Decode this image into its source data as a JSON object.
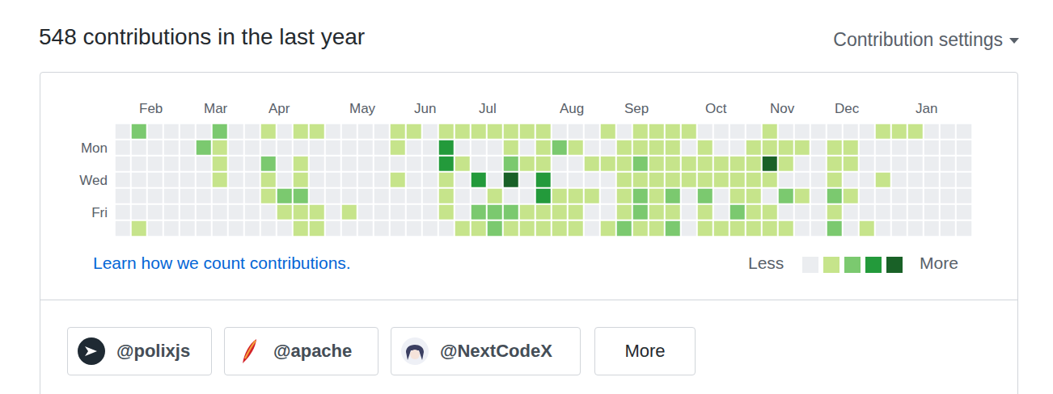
{
  "header": {
    "title": "548 contributions in the last year",
    "settings": "Contribution settings"
  },
  "chart_data": {
    "type": "heatmap",
    "categories": [
      null,
      "Feb",
      null,
      null,
      null,
      "Mar",
      null,
      null,
      null,
      "Apr",
      null,
      null,
      null,
      null,
      "May",
      null,
      null,
      null,
      "Jun",
      null,
      null,
      null,
      "Jul",
      null,
      null,
      null,
      null,
      "Aug",
      null,
      null,
      null,
      "Sep",
      null,
      null,
      null,
      null,
      "Oct",
      null,
      null,
      null,
      "Nov",
      null,
      null,
      null,
      "Dec",
      null,
      null,
      null,
      null,
      "Jan",
      null,
      null,
      null
    ],
    "rows": [
      null,
      "Mon",
      null,
      "Wed",
      null,
      "Fri",
      null
    ],
    "colors": [
      "#ebedf0",
      "#c6e48b",
      "#7bc96f",
      "#239a3b",
      "#196127"
    ],
    "cells": [
      [
        0,
        2,
        0,
        0,
        0,
        0,
        2,
        0,
        0,
        1,
        0,
        1,
        1,
        0,
        0,
        0,
        0,
        1,
        1,
        0,
        1,
        1,
        1,
        1,
        1,
        1,
        1,
        0,
        0,
        0,
        1,
        0,
        1,
        1,
        1,
        1,
        0,
        0,
        0,
        0,
        1,
        0,
        0,
        0,
        0,
        0,
        0,
        1,
        1,
        1,
        0,
        0,
        0
      ],
      [
        0,
        0,
        0,
        0,
        0,
        2,
        1,
        0,
        0,
        0,
        0,
        0,
        0,
        0,
        0,
        0,
        0,
        1,
        0,
        0,
        3,
        0,
        0,
        0,
        1,
        0,
        1,
        2,
        1,
        0,
        0,
        1,
        1,
        1,
        1,
        0,
        1,
        0,
        0,
        1,
        1,
        1,
        1,
        0,
        1,
        1,
        0,
        0,
        0,
        0,
        0,
        0,
        0
      ],
      [
        0,
        0,
        0,
        0,
        0,
        0,
        1,
        0,
        0,
        2,
        0,
        1,
        0,
        0,
        0,
        0,
        0,
        0,
        0,
        0,
        3,
        1,
        0,
        0,
        2,
        1,
        1,
        0,
        0,
        1,
        1,
        1,
        2,
        1,
        1,
        1,
        1,
        1,
        1,
        1,
        4,
        1,
        0,
        0,
        1,
        1,
        0,
        0,
        0,
        0,
        0,
        0,
        0
      ],
      [
        0,
        0,
        0,
        0,
        0,
        0,
        1,
        0,
        0,
        1,
        0,
        1,
        0,
        0,
        0,
        0,
        0,
        1,
        0,
        0,
        1,
        0,
        3,
        0,
        4,
        0,
        3,
        0,
        0,
        0,
        0,
        1,
        1,
        1,
        1,
        1,
        1,
        1,
        1,
        1,
        1,
        0,
        0,
        0,
        1,
        0,
        0,
        1,
        0,
        0,
        0,
        0,
        0
      ],
      [
        0,
        0,
        0,
        0,
        0,
        0,
        0,
        0,
        0,
        1,
        2,
        2,
        0,
        0,
        0,
        0,
        0,
        0,
        0,
        0,
        1,
        0,
        0,
        1,
        0,
        0,
        3,
        1,
        1,
        1,
        0,
        1,
        2,
        1,
        2,
        0,
        2,
        0,
        1,
        1,
        0,
        2,
        1,
        0,
        2,
        1,
        0,
        0,
        0,
        0,
        0,
        0,
        0
      ],
      [
        0,
        0,
        0,
        0,
        0,
        0,
        0,
        0,
        0,
        0,
        1,
        1,
        1,
        0,
        1,
        0,
        0,
        0,
        0,
        0,
        1,
        0,
        2,
        2,
        2,
        1,
        1,
        1,
        1,
        0,
        0,
        1,
        2,
        1,
        1,
        0,
        1,
        0,
        2,
        1,
        1,
        0,
        0,
        0,
        1,
        0,
        0,
        0,
        0,
        0,
        0,
        0,
        0
      ],
      [
        0,
        1,
        0,
        0,
        0,
        0,
        0,
        0,
        0,
        0,
        0,
        1,
        1,
        0,
        0,
        0,
        0,
        0,
        0,
        0,
        0,
        1,
        1,
        2,
        1,
        1,
        1,
        1,
        1,
        0,
        1,
        2,
        1,
        1,
        2,
        0,
        1,
        1,
        1,
        1,
        1,
        1,
        0,
        0,
        2,
        0,
        1,
        0,
        0,
        0,
        0,
        0,
        0
      ]
    ]
  },
  "footer": {
    "link": "Learn how we count contributions.",
    "less": "Less",
    "more": "More"
  },
  "organizations": [
    "@polixjs",
    "@apache",
    "@NextCodeX"
  ],
  "more_button": "More"
}
